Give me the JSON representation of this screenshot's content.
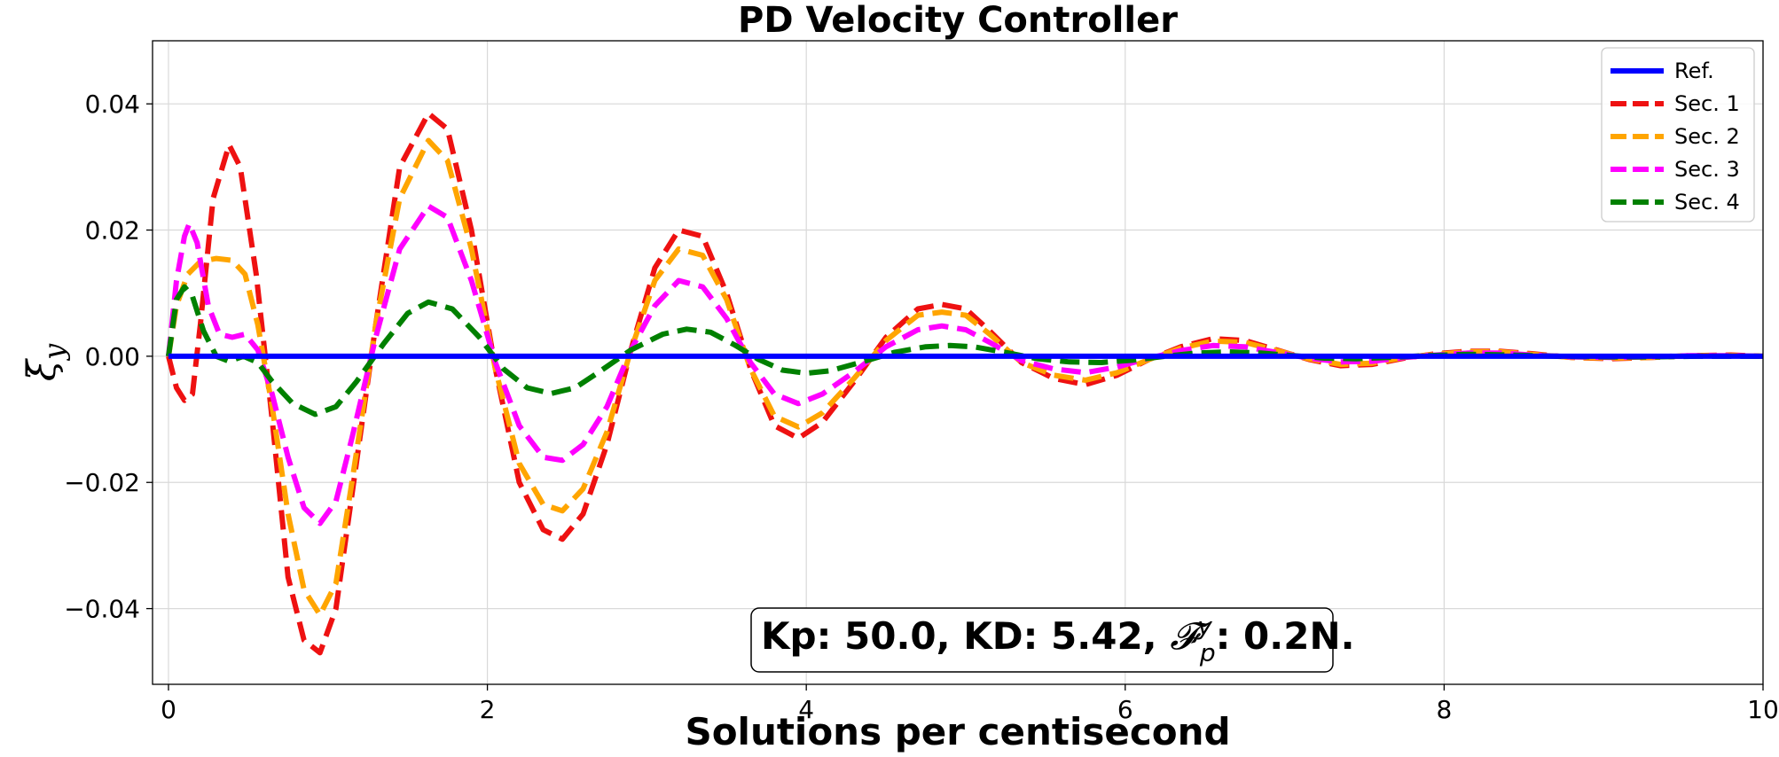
{
  "chart_data": {
    "type": "line",
    "title": "PD Velocity Controller",
    "xlabel": "Solutions per centisecond",
    "ylabel_main": "ξ̇",
    "ylabel_sub": "y",
    "xlim": [
      -0.1,
      10
    ],
    "ylim": [
      -0.052,
      0.05
    ],
    "xticks": [
      0,
      2,
      4,
      6,
      8,
      10
    ],
    "xtick_labels": [
      "0",
      "2",
      "4",
      "6",
      "8",
      "10"
    ],
    "yticks": [
      -0.04,
      -0.02,
      0.0,
      0.02,
      0.04
    ],
    "ytick_labels": [
      "−0.04",
      "−0.02",
      "0.00",
      "0.02",
      "0.04"
    ],
    "grid": true,
    "legend_position": "top-right",
    "annotation": {
      "prefix": "Kp: 50.0, KD: 5.42, ",
      "symbol": "𝓕",
      "sup": "y",
      "sub": "p",
      "suffix": ": 0.2N."
    },
    "series": [
      {
        "name": "Ref.",
        "color": "#0000ff",
        "dashed": false,
        "points": [
          [
            0,
            0
          ],
          [
            10,
            0
          ]
        ]
      },
      {
        "name": "Sec. 1",
        "color": "#ee1111",
        "dashed": true,
        "points": [
          [
            0,
            0
          ],
          [
            0.05,
            -0.005
          ],
          [
            0.1,
            -0.007
          ],
          [
            0.15,
            -0.006
          ],
          [
            0.2,
            0.005
          ],
          [
            0.28,
            0.025
          ],
          [
            0.38,
            0.0335
          ],
          [
            0.45,
            0.03
          ],
          [
            0.55,
            0.013
          ],
          [
            0.65,
            -0.01
          ],
          [
            0.75,
            -0.035
          ],
          [
            0.85,
            -0.045
          ],
          [
            0.95,
            -0.047
          ],
          [
            1.05,
            -0.04
          ],
          [
            1.15,
            -0.022
          ],
          [
            1.3,
            0.005
          ],
          [
            1.45,
            0.03
          ],
          [
            1.63,
            0.0385
          ],
          [
            1.75,
            0.036
          ],
          [
            1.9,
            0.02
          ],
          [
            2.05,
            -0.002
          ],
          [
            2.2,
            -0.02
          ],
          [
            2.35,
            -0.0275
          ],
          [
            2.47,
            -0.029
          ],
          [
            2.6,
            -0.025
          ],
          [
            2.75,
            -0.014
          ],
          [
            2.9,
            0.001
          ],
          [
            3.05,
            0.014
          ],
          [
            3.2,
            0.02
          ],
          [
            3.35,
            0.019
          ],
          [
            3.5,
            0.01
          ],
          [
            3.65,
            -0.002
          ],
          [
            3.8,
            -0.011
          ],
          [
            3.95,
            -0.013
          ],
          [
            4.1,
            -0.0105
          ],
          [
            4.3,
            -0.004
          ],
          [
            4.5,
            0.003
          ],
          [
            4.7,
            0.0075
          ],
          [
            4.85,
            0.0082
          ],
          [
            5.0,
            0.0075
          ],
          [
            5.15,
            0.004
          ],
          [
            5.35,
            -0.001
          ],
          [
            5.55,
            -0.0035
          ],
          [
            5.75,
            -0.0045
          ],
          [
            5.95,
            -0.003
          ],
          [
            6.15,
            -0.0005
          ],
          [
            6.35,
            0.0015
          ],
          [
            6.55,
            0.0028
          ],
          [
            6.75,
            0.0025
          ],
          [
            6.95,
            0.001
          ],
          [
            7.15,
            -0.0005
          ],
          [
            7.35,
            -0.0015
          ],
          [
            7.55,
            -0.0013
          ],
          [
            7.75,
            -0.0003
          ],
          [
            7.95,
            0.0004
          ],
          [
            8.15,
            0.0008
          ],
          [
            8.35,
            0.0008
          ],
          [
            8.55,
            0.0004
          ],
          [
            8.8,
            -0.0002
          ],
          [
            9.05,
            -0.0004
          ],
          [
            9.3,
            -0.0002
          ],
          [
            9.55,
            0.0001
          ],
          [
            9.8,
            0.0002
          ],
          [
            10,
            0
          ]
        ]
      },
      {
        "name": "Sec. 2",
        "color": "#ffa500",
        "dashed": true,
        "points": [
          [
            0,
            0
          ],
          [
            0.05,
            0.008
          ],
          [
            0.12,
            0.013
          ],
          [
            0.2,
            0.015
          ],
          [
            0.3,
            0.0155
          ],
          [
            0.4,
            0.0152
          ],
          [
            0.48,
            0.013
          ],
          [
            0.56,
            0.005
          ],
          [
            0.65,
            -0.008
          ],
          [
            0.75,
            -0.025
          ],
          [
            0.85,
            -0.037
          ],
          [
            0.95,
            -0.041
          ],
          [
            1.05,
            -0.036
          ],
          [
            1.15,
            -0.02
          ],
          [
            1.3,
            0.005
          ],
          [
            1.45,
            0.025
          ],
          [
            1.63,
            0.0342
          ],
          [
            1.75,
            0.031
          ],
          [
            1.9,
            0.017
          ],
          [
            2.05,
            -0.002
          ],
          [
            2.2,
            -0.017
          ],
          [
            2.35,
            -0.0235
          ],
          [
            2.47,
            -0.0245
          ],
          [
            2.6,
            -0.021
          ],
          [
            2.75,
            -0.012
          ],
          [
            2.9,
            0.001
          ],
          [
            3.05,
            0.012
          ],
          [
            3.2,
            0.017
          ],
          [
            3.35,
            0.016
          ],
          [
            3.5,
            0.009
          ],
          [
            3.65,
            -0.002
          ],
          [
            3.8,
            -0.0095
          ],
          [
            3.95,
            -0.0112
          ],
          [
            4.1,
            -0.009
          ],
          [
            4.3,
            -0.0035
          ],
          [
            4.5,
            0.0025
          ],
          [
            4.7,
            0.0065
          ],
          [
            4.85,
            0.007
          ],
          [
            5.0,
            0.0065
          ],
          [
            5.15,
            0.0035
          ],
          [
            5.35,
            -0.001
          ],
          [
            5.55,
            -0.003
          ],
          [
            5.75,
            -0.0038
          ],
          [
            5.95,
            -0.0026
          ],
          [
            6.15,
            -0.0005
          ],
          [
            6.35,
            0.0013
          ],
          [
            6.55,
            0.0024
          ],
          [
            6.75,
            0.0022
          ],
          [
            6.95,
            0.0009
          ],
          [
            7.15,
            -0.0004
          ],
          [
            7.35,
            -0.0013
          ],
          [
            7.55,
            -0.0011
          ],
          [
            7.75,
            -0.0002
          ],
          [
            7.95,
            0.0003
          ],
          [
            8.15,
            0.0007
          ],
          [
            8.35,
            0.0007
          ],
          [
            8.55,
            0.0003
          ],
          [
            8.8,
            -0.0002
          ],
          [
            9.05,
            -0.0003
          ],
          [
            9.3,
            -0.0002
          ],
          [
            9.55,
            0.0001
          ],
          [
            9.8,
            0.0001
          ],
          [
            10,
            0
          ]
        ]
      },
      {
        "name": "Sec. 3",
        "color": "#ff00ff",
        "dashed": true,
        "points": [
          [
            0,
            0
          ],
          [
            0.05,
            0.012
          ],
          [
            0.1,
            0.019
          ],
          [
            0.13,
            0.021
          ],
          [
            0.18,
            0.018
          ],
          [
            0.25,
            0.008
          ],
          [
            0.32,
            0.0035
          ],
          [
            0.4,
            0.003
          ],
          [
            0.48,
            0.0035
          ],
          [
            0.56,
            0.001
          ],
          [
            0.65,
            -0.006
          ],
          [
            0.75,
            -0.016
          ],
          [
            0.85,
            -0.024
          ],
          [
            0.95,
            -0.0265
          ],
          [
            1.05,
            -0.023
          ],
          [
            1.15,
            -0.013
          ],
          [
            1.3,
            0.003
          ],
          [
            1.45,
            0.017
          ],
          [
            1.63,
            0.0238
          ],
          [
            1.75,
            0.022
          ],
          [
            1.9,
            0.012
          ],
          [
            2.05,
            -0.001
          ],
          [
            2.2,
            -0.011
          ],
          [
            2.35,
            -0.016
          ],
          [
            2.47,
            -0.0165
          ],
          [
            2.6,
            -0.014
          ],
          [
            2.75,
            -0.008
          ],
          [
            2.9,
            0.001
          ],
          [
            3.05,
            0.008
          ],
          [
            3.2,
            0.012
          ],
          [
            3.35,
            0.011
          ],
          [
            3.5,
            0.006
          ],
          [
            3.65,
            -0.001
          ],
          [
            3.8,
            -0.006
          ],
          [
            3.95,
            -0.0075
          ],
          [
            4.1,
            -0.006
          ],
          [
            4.3,
            -0.0025
          ],
          [
            4.5,
            0.0015
          ],
          [
            4.7,
            0.0042
          ],
          [
            4.85,
            0.0048
          ],
          [
            5.0,
            0.0042
          ],
          [
            5.15,
            0.0022
          ],
          [
            5.35,
            -0.0007
          ],
          [
            5.55,
            -0.002
          ],
          [
            5.75,
            -0.0026
          ],
          [
            5.95,
            -0.0017
          ],
          [
            6.15,
            -0.0003
          ],
          [
            6.35,
            0.0009
          ],
          [
            6.55,
            0.0017
          ],
          [
            6.75,
            0.0015
          ],
          [
            6.95,
            0.0006
          ],
          [
            7.15,
            -0.0003
          ],
          [
            7.35,
            -0.0009
          ],
          [
            7.55,
            -0.0008
          ],
          [
            7.75,
            -0.0002
          ],
          [
            7.95,
            0.0002
          ],
          [
            8.15,
            0.0005
          ],
          [
            8.35,
            0.0005
          ],
          [
            8.55,
            0.0002
          ],
          [
            8.8,
            -0.0001
          ],
          [
            9.05,
            -0.0002
          ],
          [
            9.3,
            -0.0001
          ],
          [
            9.55,
            0.0001
          ],
          [
            9.8,
            0.0001
          ],
          [
            10,
            0
          ]
        ]
      },
      {
        "name": "Sec. 4",
        "color": "#008000",
        "dashed": true,
        "points": [
          [
            0,
            0
          ],
          [
            0.05,
            0.009
          ],
          [
            0.1,
            0.011
          ],
          [
            0.15,
            0.0095
          ],
          [
            0.22,
            0.004
          ],
          [
            0.3,
            0.0
          ],
          [
            0.38,
            -0.0008
          ],
          [
            0.47,
            0.0
          ],
          [
            0.56,
            -0.001
          ],
          [
            0.65,
            -0.004
          ],
          [
            0.78,
            -0.0075
          ],
          [
            0.92,
            -0.0092
          ],
          [
            1.05,
            -0.008
          ],
          [
            1.18,
            -0.004
          ],
          [
            1.35,
            0.002
          ],
          [
            1.5,
            0.0068
          ],
          [
            1.63,
            0.0086
          ],
          [
            1.78,
            0.0075
          ],
          [
            1.95,
            0.003
          ],
          [
            2.1,
            -0.002
          ],
          [
            2.25,
            -0.005
          ],
          [
            2.4,
            -0.0059
          ],
          [
            2.55,
            -0.005
          ],
          [
            2.7,
            -0.0025
          ],
          [
            2.9,
            0.001
          ],
          [
            3.1,
            0.0035
          ],
          [
            3.25,
            0.0043
          ],
          [
            3.4,
            0.0038
          ],
          [
            3.55,
            0.0018
          ],
          [
            3.7,
            -0.0005
          ],
          [
            3.85,
            -0.0022
          ],
          [
            4.0,
            -0.0027
          ],
          [
            4.15,
            -0.0023
          ],
          [
            4.35,
            -0.0009
          ],
          [
            4.55,
            0.0006
          ],
          [
            4.75,
            0.0015
          ],
          [
            4.9,
            0.0017
          ],
          [
            5.05,
            0.0015
          ],
          [
            5.25,
            0.0006
          ],
          [
            5.45,
            -0.0004
          ],
          [
            5.65,
            -0.0009
          ],
          [
            5.85,
            -0.001
          ],
          [
            6.05,
            -0.0006
          ],
          [
            6.25,
            0.0
          ],
          [
            6.45,
            0.0005
          ],
          [
            6.65,
            0.0007
          ],
          [
            6.85,
            0.0005
          ],
          [
            7.05,
            0.0001
          ],
          [
            7.25,
            -0.0003
          ],
          [
            7.45,
            -0.0004
          ],
          [
            7.65,
            -0.0002
          ],
          [
            7.9,
            0.0001
          ],
          [
            8.15,
            0.0003
          ],
          [
            8.4,
            0.0002
          ],
          [
            8.7,
            0.0
          ],
          [
            9.0,
            -0.0001
          ],
          [
            9.3,
            -0.0001
          ],
          [
            9.6,
            0.0
          ],
          [
            10,
            0
          ]
        ]
      }
    ]
  }
}
